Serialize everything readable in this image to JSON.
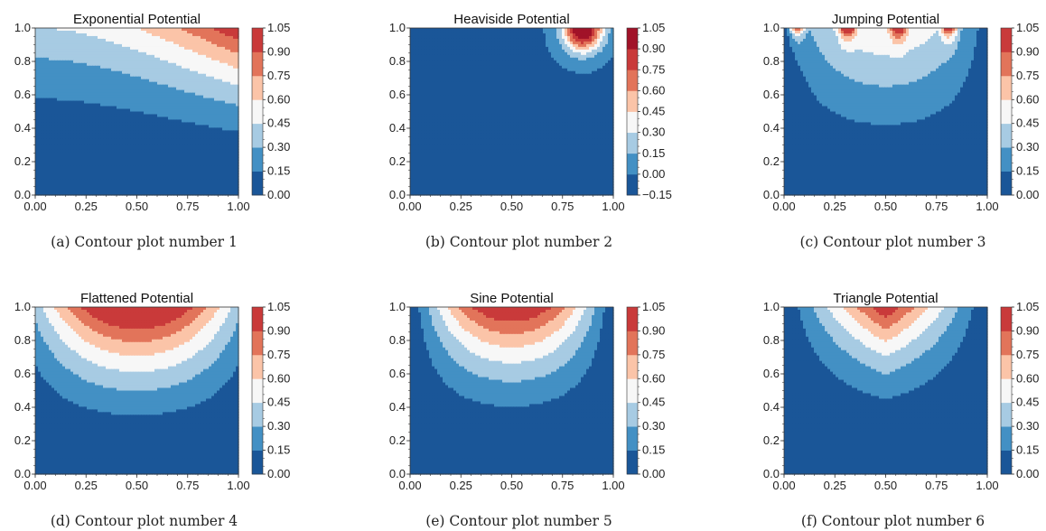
{
  "figure": {
    "colors": [
      "#1a5698",
      "#4390c4",
      "#a7cbe3",
      "#f7f7f7",
      "#fbc4a8",
      "#e2745a",
      "#c93a3a",
      "#a11228"
    ]
  },
  "chart_data": [
    {
      "id": "a",
      "type": "contour",
      "title": "Exponential Potential",
      "caption": "(a)  Contour plot number 1",
      "xlim": [
        0,
        1
      ],
      "ylim": [
        0,
        1
      ],
      "x_ticks": [
        "0.00",
        "0.25",
        "0.50",
        "0.75",
        "1.00"
      ],
      "y_ticks": [
        "0.0",
        "0.2",
        "0.4",
        "0.6",
        "0.8",
        "1.0"
      ],
      "levels": [
        0.0,
        0.15,
        0.3,
        0.45,
        0.6,
        0.75,
        0.9,
        1.05
      ],
      "colorbar_ticks": [
        "0.00",
        "0.15",
        "0.30",
        "0.45",
        "0.60",
        "0.75",
        "0.90",
        "1.05"
      ],
      "colorbar_colors": [
        "#1a5698",
        "#4390c4",
        "#a7cbe3",
        "#f7f7f7",
        "#fbc4a8",
        "#e2745a",
        "#c93a3a"
      ]
    },
    {
      "id": "b",
      "type": "contour",
      "title": "Heaviside Potential",
      "caption": "(b)  Contour plot number 2",
      "xlim": [
        0,
        1
      ],
      "ylim": [
        0,
        1
      ],
      "x_ticks": [
        "0.00",
        "0.25",
        "0.50",
        "0.75",
        "1.00"
      ],
      "y_ticks": [
        "0.0",
        "0.2",
        "0.4",
        "0.6",
        "0.8",
        "1.0"
      ],
      "levels": [
        -0.15,
        0.0,
        0.15,
        0.3,
        0.45,
        0.6,
        0.75,
        0.9,
        1.05
      ],
      "colorbar_ticks": [
        "−0.15",
        "0.00",
        "0.15",
        "0.30",
        "0.45",
        "0.60",
        "0.75",
        "0.90",
        "1.05"
      ],
      "colorbar_colors": [
        "#1a5698",
        "#4390c4",
        "#a7cbe3",
        "#f7f7f7",
        "#fbc4a8",
        "#e2745a",
        "#c93a3a",
        "#a11228"
      ]
    },
    {
      "id": "c",
      "type": "contour",
      "title": "Jumping Potential",
      "caption": "(c)  Contour plot number 3",
      "xlim": [
        0,
        1
      ],
      "ylim": [
        0,
        1
      ],
      "x_ticks": [
        "0.00",
        "0.25",
        "0.50",
        "0.75",
        "1.00"
      ],
      "y_ticks": [
        "0.0",
        "0.2",
        "0.4",
        "0.6",
        "0.8",
        "1.0"
      ],
      "levels": [
        0.0,
        0.15,
        0.3,
        0.45,
        0.6,
        0.75,
        0.9,
        1.05
      ],
      "colorbar_ticks": [
        "0.00",
        "0.15",
        "0.30",
        "0.45",
        "0.60",
        "0.75",
        "0.90",
        "1.05"
      ],
      "colorbar_colors": [
        "#1a5698",
        "#4390c4",
        "#a7cbe3",
        "#f7f7f7",
        "#fbc4a8",
        "#e2745a",
        "#c93a3a"
      ]
    },
    {
      "id": "d",
      "type": "contour",
      "title": "Flattened Potential",
      "caption": "(d)  Contour plot number 4",
      "xlim": [
        0,
        1
      ],
      "ylim": [
        0,
        1
      ],
      "x_ticks": [
        "0.00",
        "0.25",
        "0.50",
        "0.75",
        "1.00"
      ],
      "y_ticks": [
        "0.0",
        "0.2",
        "0.4",
        "0.6",
        "0.8",
        "1.0"
      ],
      "levels": [
        0.0,
        0.15,
        0.3,
        0.45,
        0.6,
        0.75,
        0.9,
        1.05
      ],
      "colorbar_ticks": [
        "0.00",
        "0.15",
        "0.30",
        "0.45",
        "0.60",
        "0.75",
        "0.90",
        "1.05"
      ],
      "colorbar_colors": [
        "#1a5698",
        "#4390c4",
        "#a7cbe3",
        "#f7f7f7",
        "#fbc4a8",
        "#e2745a",
        "#c93a3a"
      ]
    },
    {
      "id": "e",
      "type": "contour",
      "title": "Sine Potential",
      "caption": "(e)  Contour plot number 5",
      "xlim": [
        0,
        1
      ],
      "ylim": [
        0,
        1
      ],
      "x_ticks": [
        "0.00",
        "0.25",
        "0.50",
        "0.75",
        "1.00"
      ],
      "y_ticks": [
        "0.0",
        "0.2",
        "0.4",
        "0.6",
        "0.8",
        "1.0"
      ],
      "levels": [
        0.0,
        0.15,
        0.3,
        0.45,
        0.6,
        0.75,
        0.9,
        1.05
      ],
      "colorbar_ticks": [
        "0.00",
        "0.15",
        "0.30",
        "0.45",
        "0.60",
        "0.75",
        "0.90",
        "1.05"
      ],
      "colorbar_colors": [
        "#1a5698",
        "#4390c4",
        "#a7cbe3",
        "#f7f7f7",
        "#fbc4a8",
        "#e2745a",
        "#c93a3a"
      ]
    },
    {
      "id": "f",
      "type": "contour",
      "title": "Triangle Potential",
      "caption": "(f)  Contour plot number 6",
      "xlim": [
        0,
        1
      ],
      "ylim": [
        0,
        1
      ],
      "x_ticks": [
        "0.00",
        "0.25",
        "0.50",
        "0.75",
        "1.00"
      ],
      "y_ticks": [
        "0.0",
        "0.2",
        "0.4",
        "0.6",
        "0.8",
        "1.0"
      ],
      "levels": [
        0.0,
        0.15,
        0.3,
        0.45,
        0.6,
        0.75,
        0.9,
        1.05
      ],
      "colorbar_ticks": [
        "0.00",
        "0.15",
        "0.30",
        "0.45",
        "0.60",
        "0.75",
        "0.90",
        "1.05"
      ],
      "colorbar_colors": [
        "#1a5698",
        "#4390c4",
        "#a7cbe3",
        "#f7f7f7",
        "#fbc4a8",
        "#e2745a",
        "#c93a3a"
      ]
    }
  ]
}
